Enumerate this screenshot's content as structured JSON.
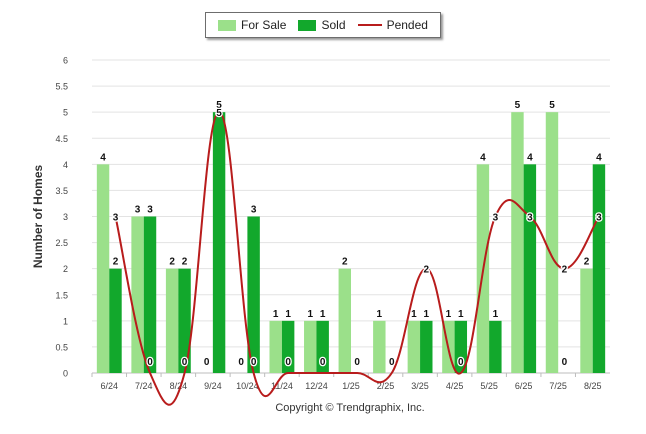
{
  "chart_data": {
    "type": "bar",
    "ylabel": "Number of Homes",
    "ylim": [
      0,
      6
    ],
    "ytick_step": 0.5,
    "categories": [
      "6/24",
      "7/24",
      "8/24",
      "9/24",
      "10/24",
      "11/24",
      "12/24",
      "1/25",
      "2/25",
      "3/25",
      "4/25",
      "5/25",
      "6/25",
      "7/25",
      "8/25"
    ],
    "series": [
      {
        "name": "For Sale",
        "type": "bar",
        "color": "#9be08a",
        "values": [
          4,
          3,
          2,
          0,
          0,
          1,
          1,
          2,
          1,
          1,
          1,
          4,
          5,
          5,
          2
        ]
      },
      {
        "name": "Sold",
        "type": "bar",
        "color": "#12a82c",
        "values": [
          2,
          3,
          2,
          5,
          3,
          1,
          1,
          0,
          0,
          1,
          1,
          1,
          4,
          0,
          4
        ]
      },
      {
        "name": "Pended",
        "type": "line",
        "color": "#b81c1c",
        "values": [
          3,
          0,
          0,
          5,
          0,
          0,
          0,
          0,
          0,
          2,
          0,
          3,
          3,
          2,
          3
        ]
      }
    ],
    "legend_position": "top-center",
    "grid": true
  },
  "footer": {
    "copyright": "Copyright © Trendgraphix, Inc."
  }
}
